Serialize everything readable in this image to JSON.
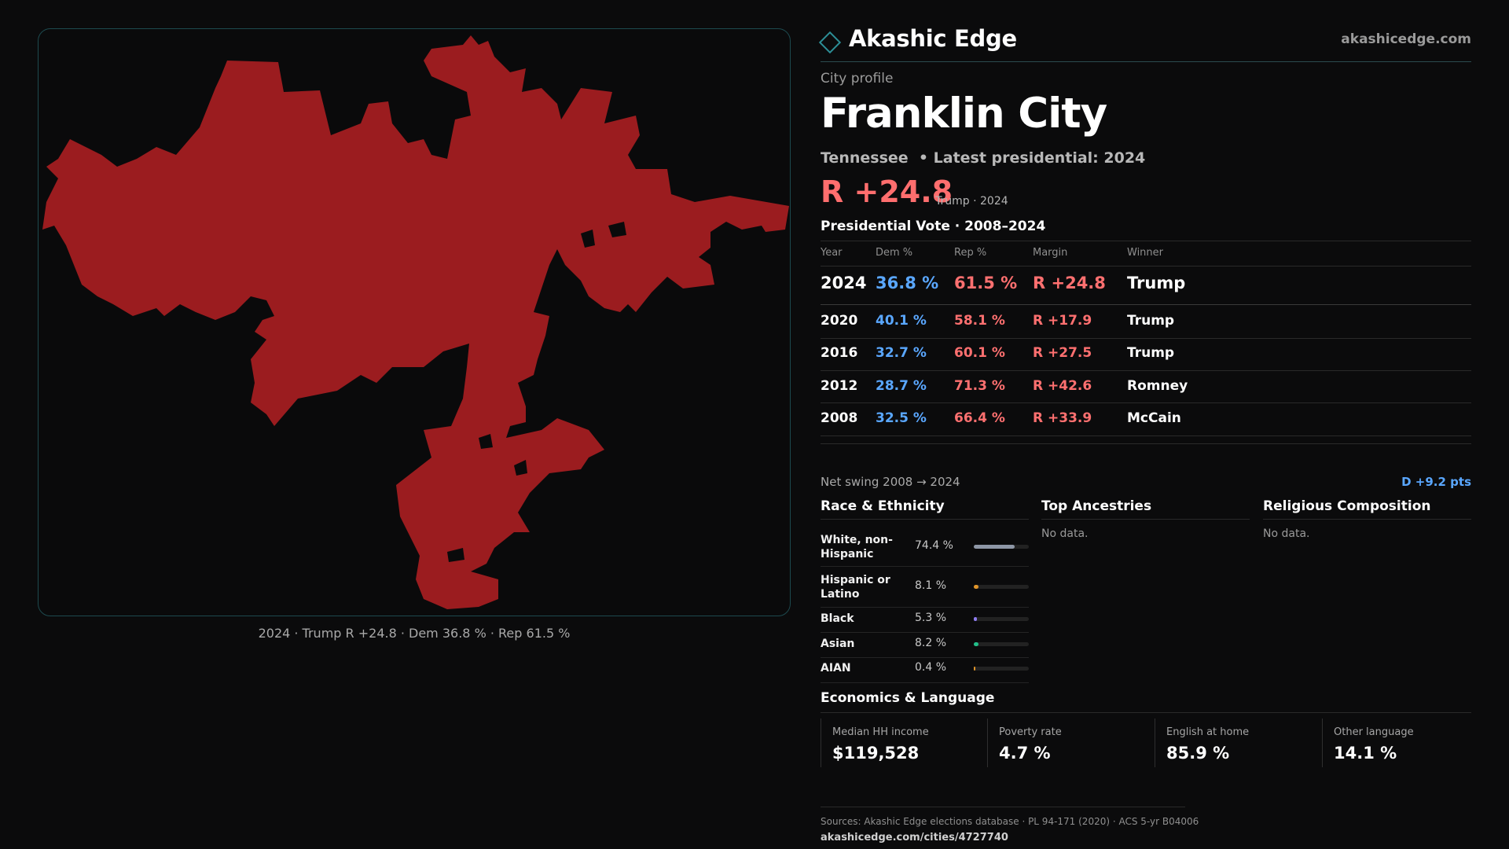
{
  "map": {
    "fill_color": "#9b1c1f",
    "caption": "2024 · Trump R +24.8 · Dem 36.8 % · Rep 61.5 %"
  },
  "brand": {
    "name": "Akashic Edge",
    "site": "akashicedge.com",
    "icon": "diamond-icon"
  },
  "profile": {
    "eyebrow": "City profile",
    "city": "Franklin City",
    "subtitle": "Tennessee  • Latest presidential: 2024",
    "margin_big": "R +24.8",
    "margin_note": "Trump · 2024"
  },
  "presidential": {
    "title": "Presidential Vote · 2008–2024",
    "headers": {
      "year": "Year",
      "dem": "Dem %",
      "rep": "Rep %",
      "margin": "Margin",
      "winner": "Winner"
    },
    "rows": [
      {
        "year": "2024",
        "dem": "36.8 %",
        "rep": "61.5 %",
        "margin": "R +24.8",
        "winner": "Trump"
      },
      {
        "year": "2020",
        "dem": "40.1 %",
        "rep": "58.1 %",
        "margin": "R +17.9",
        "winner": "Trump"
      },
      {
        "year": "2016",
        "dem": "32.7 %",
        "rep": "60.1 %",
        "margin": "R +27.5",
        "winner": "Trump"
      },
      {
        "year": "2012",
        "dem": "28.7 %",
        "rep": "71.3 %",
        "margin": "R +42.6",
        "winner": "Romney"
      },
      {
        "year": "2008",
        "dem": "32.5 %",
        "rep": "66.4 %",
        "margin": "R +33.9",
        "winner": "McCain"
      }
    ],
    "swing_label": "Net swing 2008 → 2024",
    "swing_value": "D +9.2 pts"
  },
  "race": {
    "title": "Race & Ethnicity",
    "rows": [
      {
        "label": "White, non-\nHispanic",
        "pct_text": "74.4 %",
        "pct": 74.4,
        "color": "#8e97a6"
      },
      {
        "label": "Hispanic or\nLatino",
        "pct_text": "8.1 %",
        "pct": 8.1,
        "color": "#e0952a"
      },
      {
        "label": "Black",
        "pct_text": "5.3 %",
        "pct": 5.3,
        "color": "#8e7cf0"
      },
      {
        "label": "Asian",
        "pct_text": "8.2 %",
        "pct": 8.2,
        "color": "#22c08a"
      },
      {
        "label": "AIAN",
        "pct_text": "0.4 %",
        "pct": 0.4,
        "color": "#e0952a"
      }
    ]
  },
  "ancestries": {
    "title": "Top Ancestries",
    "empty": "No data."
  },
  "religion": {
    "title": "Religious Composition",
    "empty": "No data."
  },
  "economics": {
    "title": "Economics & Language",
    "stats": [
      {
        "label": "Median HH income",
        "value": "$119,528"
      },
      {
        "label": "Poverty rate",
        "value": "4.7 %"
      },
      {
        "label": "English at home",
        "value": "85.9 %"
      },
      {
        "label": "Other language",
        "value": "14.1 %"
      }
    ]
  },
  "footer": {
    "sources": "Sources: Akashic Edge elections database · PL 94-171 (2020) · ACS 5-yr B04006",
    "url": "akashicedge.com/cities/4727740"
  }
}
